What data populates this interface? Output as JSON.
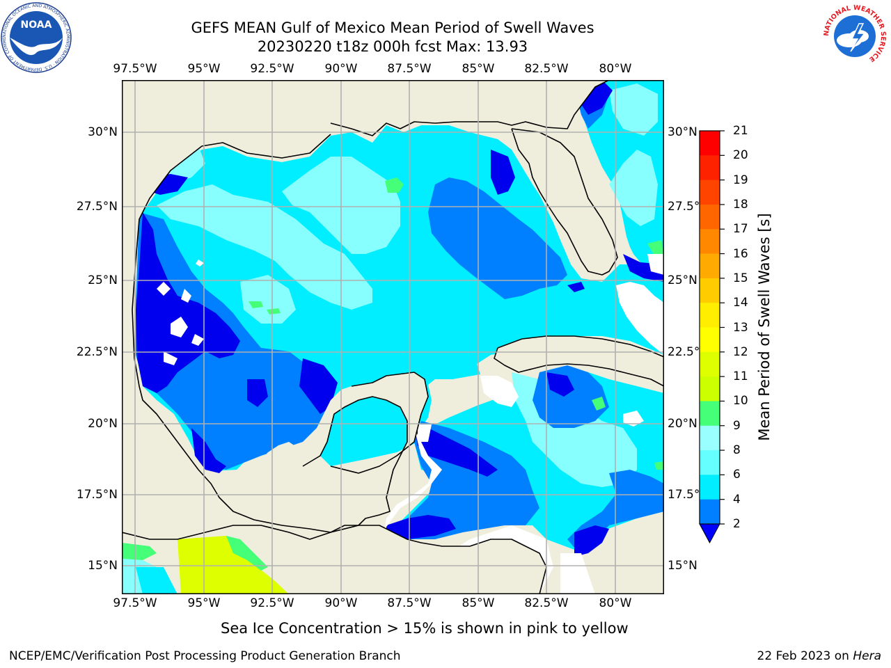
{
  "title": {
    "line1": "GEFS MEAN Gulf of Mexico Mean Period of Swell Waves",
    "line2": "20230220 t18z 000h fcst   Max: 13.93"
  },
  "colors": {
    "land": "#efeedd",
    "missing": "#ffffff",
    "grid": "#b0b0b0",
    "coast": "#000000",
    "levels": [
      "#0052ff",
      "#00ccff",
      "#66ffff",
      "#99ffff",
      "#33ff77",
      "#00ee00",
      "#66ff00",
      "#99ff00",
      "#ccff00",
      "#ddff00",
      "#ffff00",
      "#ffee00",
      "#ffcc00",
      "#ffaa00",
      "#ff8800",
      "#ff6600",
      "#ff4400",
      "#ff2200",
      "#ff0000"
    ],
    "under": "#0000ff",
    "fields": {
      "deep": "#0000ee",
      "blue": "#0080ff",
      "cyan": "#00eeff",
      "lightcyan": "#88ffff",
      "green": "#44ff77",
      "yellow": "#ddff00"
    }
  },
  "axes": {
    "lon_labels": [
      "97.5°W",
      "95°W",
      "92.5°W",
      "90°W",
      "87.5°W",
      "85°W",
      "82.5°W",
      "80°W"
    ],
    "lat_labels": [
      "30°N",
      "27.5°N",
      "25°N",
      "22.5°N",
      "20°N",
      "17.5°N",
      "15°N"
    ],
    "lat_labels_right": [
      "30°N",
      "27.5°N",
      "25°N",
      "22.5°N",
      "20°N",
      "17.5°N",
      "15°N"
    ]
  },
  "colorbar": {
    "label": "Mean Period of Swell Waves [s]",
    "ticks": [
      "21",
      "20",
      "19",
      "18",
      "17",
      "16",
      "15",
      "14",
      "13",
      "12",
      "11",
      "10",
      "9",
      "8",
      "6",
      "4",
      "2"
    ]
  },
  "note": "Sea Ice Concentration > 15% is shown in pink to yellow",
  "footer": {
    "credit": "NCEP/EMC/Verification Post Processing Product Generation Branch",
    "date": "22 Feb 2023 on",
    "host": "Hera"
  },
  "logos": {
    "noaa": "NOAA",
    "nws_ring": "NATIONAL WEATHER SERVICE",
    "noaa_ring": "NATIONAL OCEANIC AND ATMOSPHERIC ADMINISTRATION · U.S. DEPARTMENT OF COMMERCE"
  }
}
